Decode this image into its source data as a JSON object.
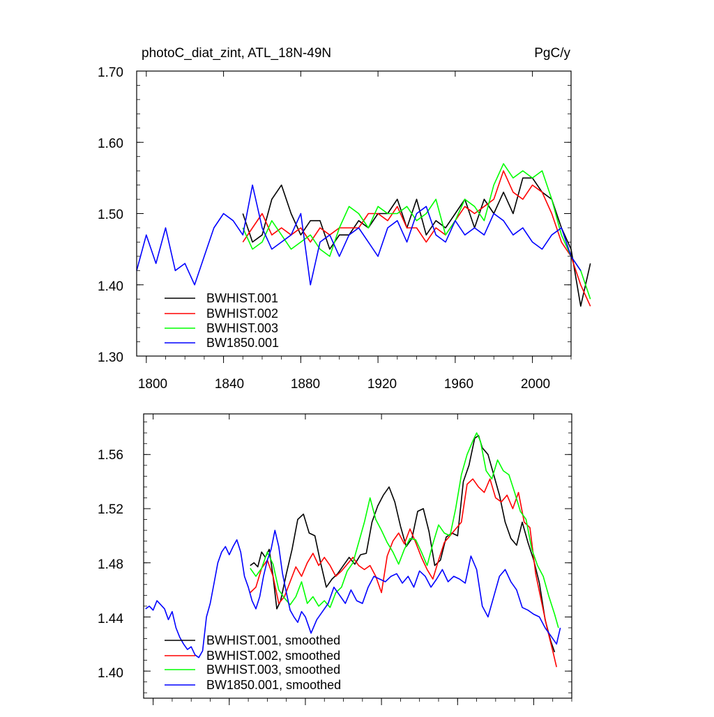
{
  "chart_data": [
    {
      "type": "line",
      "title": "photoC_diat_zint, ATL_18N-49N",
      "units": "PgC/y",
      "xlabel": "",
      "ylabel": "",
      "xlim": [
        1795,
        2020
      ],
      "ylim": [
        1.3,
        1.7
      ],
      "x_ticks": [
        1800,
        1840,
        1880,
        1920,
        1960,
        2000
      ],
      "y_ticks": [
        1.3,
        1.4,
        1.5,
        1.6,
        1.7
      ],
      "y_tick_labels": [
        "1.30",
        "1.40",
        "1.50",
        "1.60",
        "1.70"
      ],
      "legend_position": "bottom-left",
      "series": [
        {
          "name": "BWHIST.001",
          "color": "#000000",
          "x_start": 1850,
          "step": 5,
          "values": [
            1.5,
            1.46,
            1.47,
            1.52,
            1.54,
            1.5,
            1.47,
            1.49,
            1.49,
            1.45,
            1.47,
            1.47,
            1.49,
            1.48,
            1.5,
            1.5,
            1.52,
            1.48,
            1.52,
            1.47,
            1.49,
            1.48,
            1.5,
            1.52,
            1.48,
            1.52,
            1.5,
            1.53,
            1.5,
            1.55,
            1.55,
            1.53,
            1.52,
            1.48,
            1.45,
            1.37,
            1.43
          ]
        },
        {
          "name": "BWHIST.002",
          "color": "#ff0000",
          "x_start": 1850,
          "step": 5,
          "values": [
            1.46,
            1.48,
            1.5,
            1.47,
            1.48,
            1.47,
            1.48,
            1.46,
            1.48,
            1.47,
            1.48,
            1.48,
            1.48,
            1.5,
            1.5,
            1.49,
            1.51,
            1.48,
            1.48,
            1.46,
            1.48,
            1.47,
            1.49,
            1.51,
            1.5,
            1.51,
            1.52,
            1.56,
            1.53,
            1.52,
            1.54,
            1.53,
            1.5,
            1.46,
            1.44,
            1.4,
            1.37
          ]
        },
        {
          "name": "BWHIST.003",
          "color": "#00ff00",
          "x_start": 1850,
          "step": 5,
          "values": [
            1.48,
            1.45,
            1.46,
            1.49,
            1.47,
            1.45,
            1.46,
            1.47,
            1.45,
            1.44,
            1.48,
            1.51,
            1.5,
            1.48,
            1.51,
            1.5,
            1.5,
            1.51,
            1.49,
            1.5,
            1.52,
            1.47,
            1.49,
            1.52,
            1.51,
            1.49,
            1.54,
            1.57,
            1.55,
            1.56,
            1.55,
            1.56,
            1.52,
            1.47,
            1.44,
            1.42,
            1.38
          ]
        },
        {
          "name": "BW1850.001",
          "color": "#0000ff",
          "x_start": 1795,
          "step": 5,
          "values": [
            1.42,
            1.47,
            1.43,
            1.48,
            1.42,
            1.43,
            1.4,
            1.44,
            1.48,
            1.5,
            1.49,
            1.47,
            1.54,
            1.48,
            1.45,
            1.46,
            1.47,
            1.5,
            1.4,
            1.46,
            1.47,
            1.44,
            1.47,
            1.48,
            1.46,
            1.44,
            1.48,
            1.49,
            1.46,
            1.5,
            1.51,
            1.47,
            1.46,
            1.49,
            1.47,
            1.48,
            1.47,
            1.5,
            1.49,
            1.47,
            1.48,
            1.46,
            1.45,
            1.47,
            1.48,
            1.44,
            1.42
          ]
        }
      ]
    },
    {
      "type": "line",
      "title": "",
      "xlabel": "",
      "ylabel": "",
      "xlim": [
        1795,
        2020
      ],
      "ylim": [
        1.38,
        1.59
      ],
      "x_ticks": [
        1800,
        1840,
        1880,
        1920,
        1960,
        2000
      ],
      "y_ticks": [
        1.4,
        1.44,
        1.48,
        1.52,
        1.56
      ],
      "y_tick_labels": [
        "1.40",
        "1.44",
        "1.48",
        "1.52",
        "1.56"
      ],
      "legend_position": "bottom-left",
      "series": [
        {
          "name": "BWHIST.001, smoothed",
          "color": "#000000",
          "x": [
            1851,
            1853,
            1855,
            1857,
            1859,
            1861,
            1863,
            1865,
            1867,
            1870,
            1873,
            1876,
            1879,
            1882,
            1885,
            1888,
            1891,
            1894,
            1897,
            1900,
            1903,
            1906,
            1909,
            1912,
            1915,
            1918,
            1921,
            1924,
            1927,
            1930,
            1933,
            1936,
            1939,
            1942,
            1945,
            1948,
            1951,
            1954,
            1957,
            1960,
            1963,
            1966,
            1969,
            1971,
            1973,
            1976,
            1979,
            1982,
            1985,
            1988,
            1991,
            1994,
            1997,
            2000,
            2003,
            2006,
            2009,
            2011
          ],
          "y": [
            1.478,
            1.48,
            1.477,
            1.488,
            1.484,
            1.49,
            1.47,
            1.446,
            1.452,
            1.472,
            1.49,
            1.512,
            1.516,
            1.502,
            1.5,
            1.48,
            1.462,
            1.468,
            1.472,
            1.478,
            1.484,
            1.479,
            1.486,
            1.487,
            1.51,
            1.522,
            1.53,
            1.536,
            1.525,
            1.507,
            1.492,
            1.498,
            1.518,
            1.52,
            1.503,
            1.478,
            1.482,
            1.499,
            1.502,
            1.5,
            1.54,
            1.552,
            1.572,
            1.574,
            1.565,
            1.56,
            1.545,
            1.53,
            1.51,
            1.498,
            1.493,
            1.51,
            1.495,
            1.482,
            1.465,
            1.438,
            1.422,
            1.414
          ]
        },
        {
          "name": "BWHIST.002, smoothed",
          "color": "#ff0000",
          "x": [
            1851,
            1854,
            1857,
            1860,
            1863,
            1866,
            1869,
            1872,
            1875,
            1878,
            1881,
            1884,
            1887,
            1890,
            1893,
            1896,
            1899,
            1902,
            1905,
            1908,
            1911,
            1914,
            1917,
            1920,
            1923,
            1926,
            1929,
            1932,
            1935,
            1938,
            1941,
            1944,
            1947,
            1950,
            1953,
            1956,
            1959,
            1962,
            1965,
            1968,
            1971,
            1974,
            1977,
            1980,
            1983,
            1986,
            1989,
            1992,
            1995,
            1998,
            2001,
            2004,
            2007,
            2010,
            2012
          ],
          "y": [
            1.458,
            1.462,
            1.476,
            1.482,
            1.47,
            1.45,
            1.455,
            1.466,
            1.477,
            1.47,
            1.48,
            1.487,
            1.478,
            1.484,
            1.478,
            1.47,
            1.474,
            1.479,
            1.484,
            1.478,
            1.475,
            1.478,
            1.47,
            1.458,
            1.485,
            1.496,
            1.502,
            1.494,
            1.505,
            1.495,
            1.484,
            1.475,
            1.468,
            1.482,
            1.495,
            1.5,
            1.505,
            1.51,
            1.538,
            1.542,
            1.536,
            1.532,
            1.542,
            1.528,
            1.525,
            1.53,
            1.52,
            1.532,
            1.51,
            1.506,
            1.472,
            1.452,
            1.432,
            1.415,
            1.403
          ]
        },
        {
          "name": "BWHIST.003, smoothed",
          "color": "#00ff00",
          "x": [
            1851,
            1854,
            1857,
            1860,
            1863,
            1866,
            1869,
            1872,
            1875,
            1878,
            1881,
            1884,
            1887,
            1890,
            1893,
            1896,
            1899,
            1902,
            1905,
            1908,
            1911,
            1914,
            1917,
            1920,
            1923,
            1926,
            1929,
            1932,
            1935,
            1938,
            1941,
            1944,
            1947,
            1950,
            1953,
            1956,
            1959,
            1962,
            1965,
            1968,
            1970,
            1972,
            1975,
            1978,
            1981,
            1984,
            1987,
            1990,
            1993,
            1996,
            1999,
            2002,
            2005,
            2008,
            2011,
            2013
          ],
          "y": [
            1.476,
            1.47,
            1.476,
            1.488,
            1.479,
            1.46,
            1.454,
            1.449,
            1.455,
            1.466,
            1.45,
            1.455,
            1.448,
            1.452,
            1.447,
            1.458,
            1.462,
            1.474,
            1.48,
            1.495,
            1.51,
            1.528,
            1.512,
            1.504,
            1.495,
            1.488,
            1.479,
            1.49,
            1.498,
            1.497,
            1.488,
            1.478,
            1.494,
            1.508,
            1.502,
            1.5,
            1.52,
            1.545,
            1.56,
            1.57,
            1.576,
            1.57,
            1.548,
            1.542,
            1.556,
            1.548,
            1.545,
            1.532,
            1.518,
            1.512,
            1.49,
            1.478,
            1.47,
            1.455,
            1.442,
            1.432
          ]
        },
        {
          "name": "BW1850.001, smoothed",
          "color": "#0000ff",
          "x": [
            1796,
            1798,
            1800,
            1802,
            1804,
            1806,
            1808,
            1810,
            1812,
            1814,
            1816,
            1818,
            1820,
            1822,
            1824,
            1826,
            1828,
            1830,
            1832,
            1834,
            1836,
            1838,
            1840,
            1842,
            1844,
            1846,
            1848,
            1850,
            1852,
            1854,
            1856,
            1858,
            1860,
            1862,
            1864,
            1866,
            1868,
            1870,
            1872,
            1874,
            1876,
            1878,
            1880,
            1883,
            1886,
            1889,
            1892,
            1895,
            1898,
            1901,
            1904,
            1907,
            1910,
            1913,
            1916,
            1919,
            1922,
            1925,
            1928,
            1931,
            1934,
            1937,
            1940,
            1943,
            1946,
            1949,
            1952,
            1955,
            1958,
            1961,
            1964,
            1967,
            1970,
            1973,
            1976,
            1979,
            1982,
            1985,
            1988,
            1991,
            1994,
            1997,
            2000,
            2003,
            2006,
            2009,
            2012,
            2014
          ],
          "y": [
            1.446,
            1.448,
            1.445,
            1.452,
            1.449,
            1.446,
            1.438,
            1.444,
            1.432,
            1.425,
            1.42,
            1.416,
            1.418,
            1.412,
            1.41,
            1.415,
            1.44,
            1.45,
            1.465,
            1.48,
            1.488,
            1.492,
            1.486,
            1.492,
            1.497,
            1.488,
            1.47,
            1.462,
            1.452,
            1.446,
            1.455,
            1.47,
            1.482,
            1.49,
            1.504,
            1.492,
            1.472,
            1.458,
            1.445,
            1.44,
            1.436,
            1.444,
            1.44,
            1.428,
            1.438,
            1.444,
            1.45,
            1.462,
            1.456,
            1.45,
            1.46,
            1.452,
            1.45,
            1.462,
            1.47,
            1.468,
            1.466,
            1.47,
            1.472,
            1.465,
            1.47,
            1.462,
            1.474,
            1.47,
            1.462,
            1.468,
            1.475,
            1.466,
            1.47,
            1.468,
            1.465,
            1.485,
            1.475,
            1.448,
            1.44,
            1.455,
            1.47,
            1.475,
            1.466,
            1.46,
            1.447,
            1.445,
            1.442,
            1.44,
            1.432,
            1.426,
            1.42,
            1.432
          ]
        }
      ]
    }
  ]
}
